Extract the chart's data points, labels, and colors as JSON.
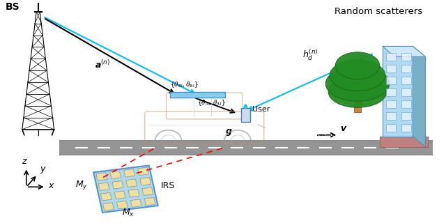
{
  "bg_color": "#ffffff",
  "bs_label": "BS",
  "rs_label": "Random scatterers",
  "irs_label": "IRS",
  "user_label": "User",
  "cyan_color": "#00BFFF",
  "red_dashed_color": "#FF0000",
  "road_color": "#8C8C8C",
  "road_light_color": "#A0A0A0",
  "irs_face_color": "#A8D8EA",
  "irs_cell_color": "#F0E0A0",
  "tree_green_dark": "#1A6B1A",
  "tree_green": "#228B22",
  "tree_trunk": "#A0522D",
  "building_blue": "#87CEEB",
  "building_dark": "#4682B4",
  "car_color": "#C09060",
  "car_alpha": 0.5
}
